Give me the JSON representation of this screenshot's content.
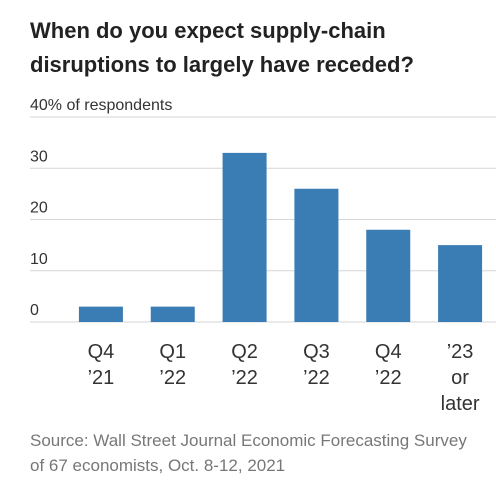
{
  "chart_data": {
    "type": "bar",
    "title": "When do you expect supply-chain disruptions to largely have receded?",
    "categories": [
      "Q4 ’21",
      "Q1 ’22",
      "Q2 ’22",
      "Q3 ’22",
      "Q4 ’22",
      "’23 or later"
    ],
    "values": [
      3,
      3,
      33,
      26,
      18,
      15
    ],
    "color": "#3a7cb4",
    "ylim": [
      0,
      40
    ],
    "yticks": [
      0,
      10,
      20,
      30,
      {
        "value": 40,
        "label": "40% of respondents"
      }
    ],
    "grid": true,
    "source": "Source: Wall Street Journal Economic Forecasting Survey of 67 economists, Oct. 8-12, 2021"
  }
}
